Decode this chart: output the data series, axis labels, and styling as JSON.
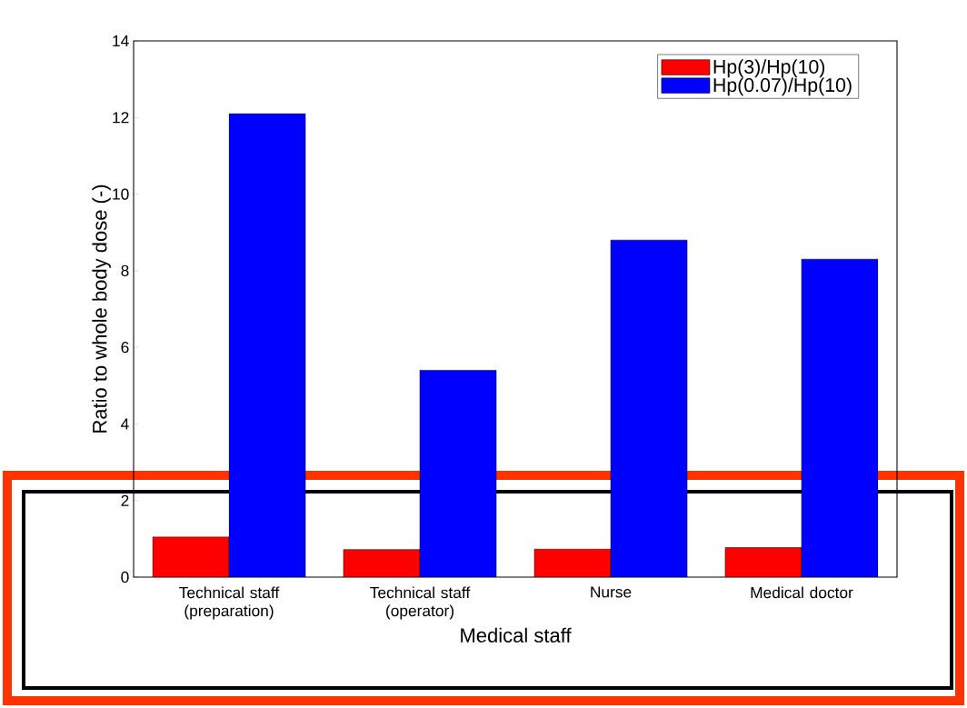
{
  "chart_data": {
    "type": "bar",
    "xlabel": "Medical staff",
    "ylabel": "Ratio to whole body dose (-)",
    "categories": [
      "Technical staff (preparation)",
      "Technical staff (operator)",
      "Nurse",
      "Medical doctor"
    ],
    "series": [
      {
        "name": "Hp(3)/Hp(10)",
        "color": "#ff0000",
        "values": [
          1.05,
          0.72,
          0.73,
          0.77
        ]
      },
      {
        "name": "Hp(0.07)/Hp(10)",
        "color": "#0000ff",
        "values": [
          12.1,
          5.4,
          8.8,
          8.3
        ]
      }
    ],
    "ylim": [
      0,
      14
    ],
    "yticks": [
      0,
      2,
      4,
      6,
      8,
      10,
      12,
      14
    ],
    "legend": "top right",
    "grid": false
  }
}
